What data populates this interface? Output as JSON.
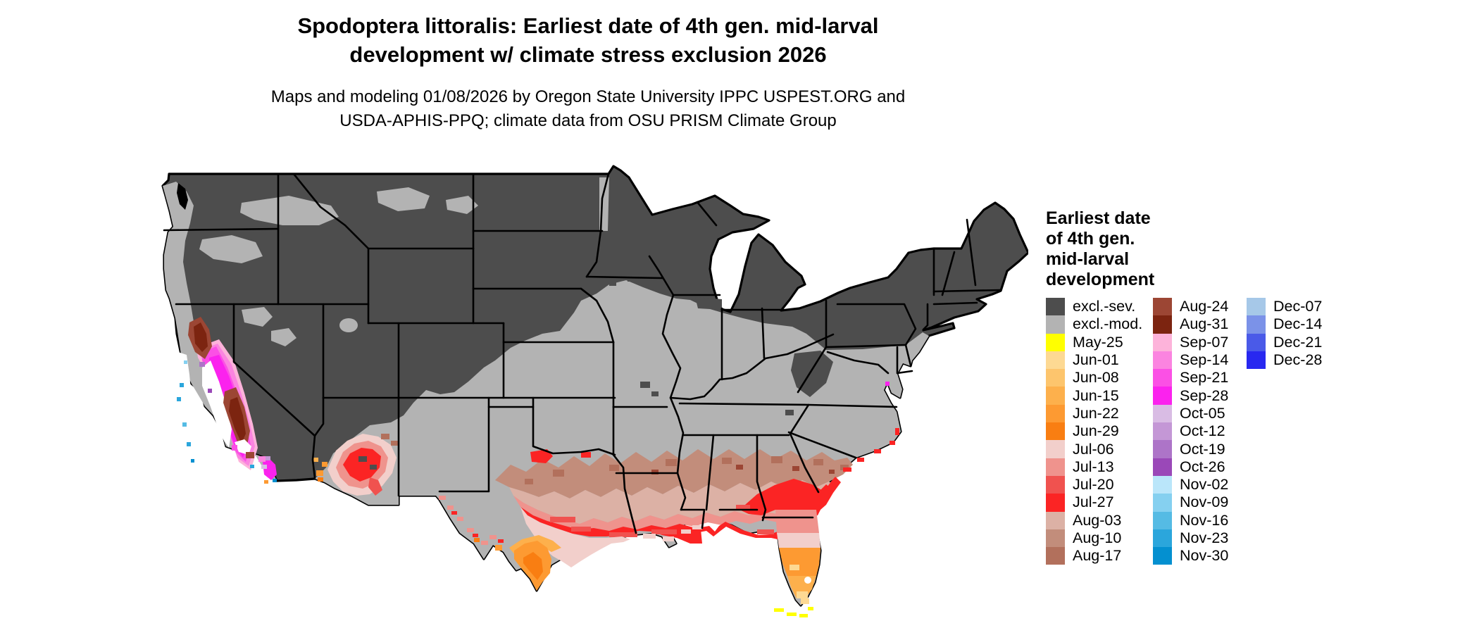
{
  "title": {
    "line1": "Spodoptera littoralis: Earliest date of 4th gen. mid-larval",
    "line2": "development w/ climate stress exclusion 2026"
  },
  "subtitle": {
    "line1": "Maps and modeling 01/08/2026 by Oregon State University IPPC USPEST.ORG and",
    "line2": "USDA-APHIS-PPQ; climate data from OSU PRISM Climate Group"
  },
  "legend": {
    "title_lines": [
      "Earliest date",
      "of 4th gen.",
      "mid-larval",
      "development"
    ],
    "columns": [
      [
        {
          "label": "excl.-sev.",
          "color": "excl_sev"
        },
        {
          "label": "excl.-mod.",
          "color": "excl_mod"
        },
        {
          "label": "May-25",
          "color": "may25"
        },
        {
          "label": "Jun-01",
          "color": "jun01"
        },
        {
          "label": "Jun-08",
          "color": "jun08"
        },
        {
          "label": "Jun-15",
          "color": "jun15"
        },
        {
          "label": "Jun-22",
          "color": "jun22"
        },
        {
          "label": "Jun-29",
          "color": "jun29"
        },
        {
          "label": "Jul-06",
          "color": "jul06"
        },
        {
          "label": "Jul-13",
          "color": "jul13"
        },
        {
          "label": "Jul-20",
          "color": "jul20"
        },
        {
          "label": "Jul-27",
          "color": "jul27"
        },
        {
          "label": "Aug-03",
          "color": "aug03"
        },
        {
          "label": "Aug-10",
          "color": "aug10"
        },
        {
          "label": "Aug-17",
          "color": "aug17"
        }
      ],
      [
        {
          "label": "Aug-24",
          "color": "aug24"
        },
        {
          "label": "Aug-31",
          "color": "aug31"
        },
        {
          "label": "Sep-07",
          "color": "sep07"
        },
        {
          "label": "Sep-14",
          "color": "sep14"
        },
        {
          "label": "Sep-21",
          "color": "sep21"
        },
        {
          "label": "Sep-28",
          "color": "sep28"
        },
        {
          "label": "Oct-05",
          "color": "oct05"
        },
        {
          "label": "Oct-12",
          "color": "oct12"
        },
        {
          "label": "Oct-19",
          "color": "oct19"
        },
        {
          "label": "Oct-26",
          "color": "oct26"
        },
        {
          "label": "Nov-02",
          "color": "nov02"
        },
        {
          "label": "Nov-09",
          "color": "nov09"
        },
        {
          "label": "Nov-16",
          "color": "nov16"
        },
        {
          "label": "Nov-23",
          "color": "nov23"
        },
        {
          "label": "Nov-30",
          "color": "nov30"
        }
      ],
      [
        {
          "label": "Dec-07",
          "color": "dec07"
        },
        {
          "label": "Dec-14",
          "color": "dec14"
        },
        {
          "label": "Dec-21",
          "color": "dec21"
        },
        {
          "label": "Dec-28",
          "color": "dec28"
        }
      ]
    ]
  },
  "map": {
    "region": "Contiguous United States",
    "colors": {
      "excl_sev": "#4d4d4d",
      "excl_mod": "#b3b3b3",
      "may25": "#ffff00",
      "jun01": "#fdd993",
      "jun08": "#fdc56d",
      "jun15": "#fdb04c",
      "jun22": "#fd9a32",
      "jun29": "#f97e12",
      "jul06": "#f2cfcb",
      "jul13": "#ef938d",
      "jul20": "#f0524f",
      "jul27": "#fb2424",
      "aug03": "#dcb1a5",
      "aug10": "#c28d7b",
      "aug17": "#b2705c",
      "aug24": "#9c4634",
      "aug31": "#7c2410",
      "sep07": "#fdb3da",
      "sep14": "#fb84e0",
      "sep21": "#fb50e5",
      "sep28": "#fb22ee",
      "oct05": "#d9bce4",
      "oct12": "#c497d6",
      "oct19": "#ad74c8",
      "oct26": "#9a48b8",
      "nov02": "#bae6fa",
      "nov09": "#85d0f0",
      "nov16": "#55bbe4",
      "nov23": "#2ba6dc",
      "nov30": "#0490d0",
      "dec07": "#a6c8e8",
      "dec14": "#7b92e8",
      "dec21": "#4a5ae8",
      "dec28": "#2828f0",
      "no_data": "#ffffff",
      "border": "#000000",
      "background": "#ffffff"
    }
  }
}
